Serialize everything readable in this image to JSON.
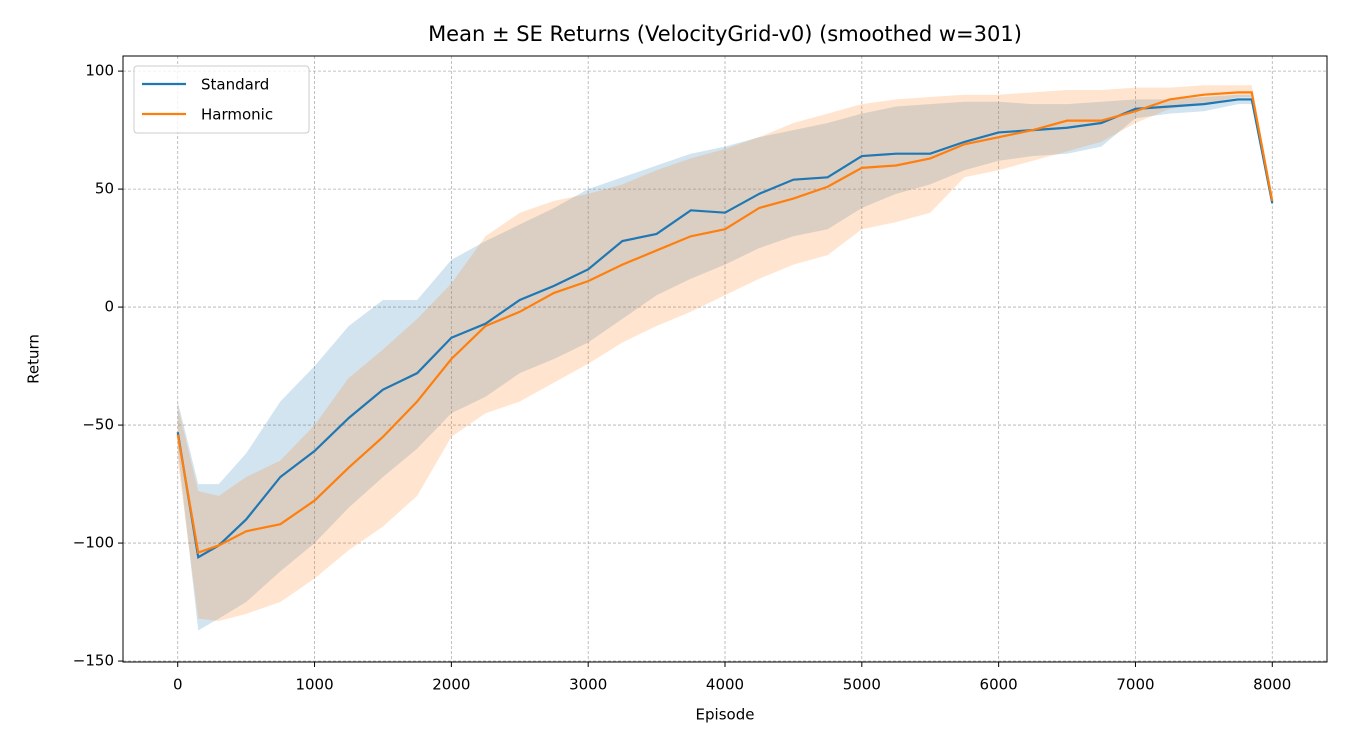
{
  "chart_data": {
    "type": "line",
    "title": "Mean ± SE Returns (VelocityGrid-v0) (smoothed w=301)",
    "x_label": "Episode",
    "y_label": "Return",
    "x": [
      0,
      150,
      300,
      500,
      750,
      1000,
      1250,
      1500,
      1750,
      2000,
      2250,
      2500,
      2750,
      3000,
      3250,
      3500,
      3750,
      4000,
      4250,
      4500,
      4750,
      5000,
      5250,
      5500,
      5750,
      6000,
      6250,
      6500,
      6750,
      7000,
      7250,
      7500,
      7750,
      7850,
      8000
    ],
    "series": [
      {
        "name": "Standard",
        "color": "#1f77b4",
        "values": [
          -53,
          -106,
          -101,
          -90,
          -72,
          -61,
          -47,
          -35,
          -28,
          -13,
          -7,
          3,
          9,
          16,
          28,
          31,
          41,
          40,
          48,
          54,
          55,
          64,
          65,
          65,
          70,
          74,
          75,
          76,
          78,
          84,
          85,
          86,
          88,
          88,
          44
        ],
        "upper": [
          -40,
          -75,
          -75,
          -62,
          -40,
          -25,
          -8,
          3,
          3,
          20,
          28,
          35,
          42,
          50,
          55,
          60,
          65,
          68,
          72,
          75,
          78,
          82,
          85,
          86,
          87,
          87,
          86,
          86,
          87,
          88,
          88,
          89,
          90,
          90,
          45
        ],
        "lower": [
          -60,
          -137,
          -132,
          -125,
          -112,
          -100,
          -85,
          -72,
          -60,
          -45,
          -38,
          -28,
          -22,
          -15,
          -5,
          5,
          12,
          18,
          25,
          30,
          33,
          42,
          48,
          52,
          58,
          62,
          64,
          65,
          68,
          80,
          82,
          83,
          86,
          86,
          43
        ]
      },
      {
        "name": "Harmonic",
        "color": "#ff7f0e",
        "values": [
          -54,
          -104,
          -101,
          -95,
          -92,
          -82,
          -68,
          -55,
          -40,
          -22,
          -8,
          -2,
          6,
          11,
          18,
          24,
          30,
          33,
          42,
          46,
          51,
          59,
          60,
          63,
          69,
          72,
          75,
          79,
          79,
          83,
          88,
          90,
          91,
          91,
          45
        ],
        "upper": [
          -42,
          -78,
          -80,
          -72,
          -65,
          -50,
          -30,
          -18,
          -5,
          10,
          30,
          40,
          45,
          48,
          52,
          58,
          63,
          67,
          72,
          78,
          82,
          86,
          88,
          89,
          90,
          90,
          91,
          92,
          92,
          93,
          93,
          94,
          94,
          94,
          47
        ],
        "lower": [
          -65,
          -132,
          -133,
          -130,
          -125,
          -115,
          -103,
          -93,
          -80,
          -55,
          -45,
          -40,
          -32,
          -24,
          -15,
          -8,
          -2,
          5,
          12,
          18,
          22,
          33,
          36,
          40,
          55,
          58,
          62,
          66,
          70,
          78,
          84,
          86,
          89,
          89,
          44
        ]
      }
    ],
    "xlim": [
      -400,
      8400
    ],
    "ylim": [
      -150.4,
      106.4
    ],
    "xticks": [
      0,
      1000,
      2000,
      3000,
      4000,
      5000,
      6000,
      7000,
      8000
    ],
    "yticks": [
      {
        "value": -150,
        "label": "−150"
      },
      {
        "value": -100,
        "label": "−100"
      },
      {
        "value": -50,
        "label": "−50"
      },
      0,
      50,
      100
    ],
    "grid": true,
    "legend": "upper left",
    "band_opacity": 0.2
  }
}
